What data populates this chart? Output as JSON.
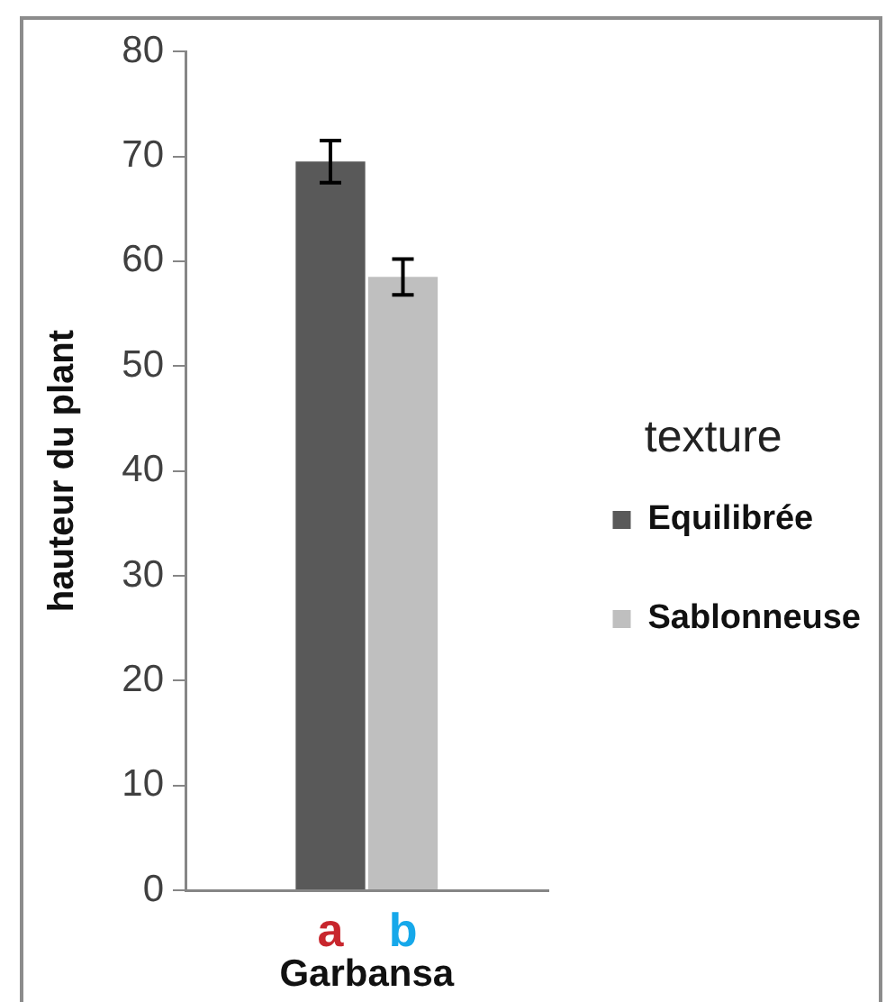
{
  "chart_data": {
    "type": "bar",
    "categories": [
      null
    ],
    "xlabel": "Garbansa",
    "ylabel": "hauteur du plant",
    "legend_title": "texture",
    "legend": "right",
    "series": [
      {
        "name": "Equilibrée",
        "color": "#595959",
        "values": [
          69.5
        ],
        "errors": [
          2
        ]
      },
      {
        "name": "Sablonneuse",
        "color": "#bfbfbf",
        "values": [
          58.5
        ],
        "errors": [
          1.7
        ]
      }
    ],
    "ylim": [
      0,
      80
    ],
    "yticks": [
      0,
      10,
      20,
      30,
      40,
      50,
      60,
      70,
      80
    ],
    "annotations": [
      "a",
      "b"
    ]
  }
}
